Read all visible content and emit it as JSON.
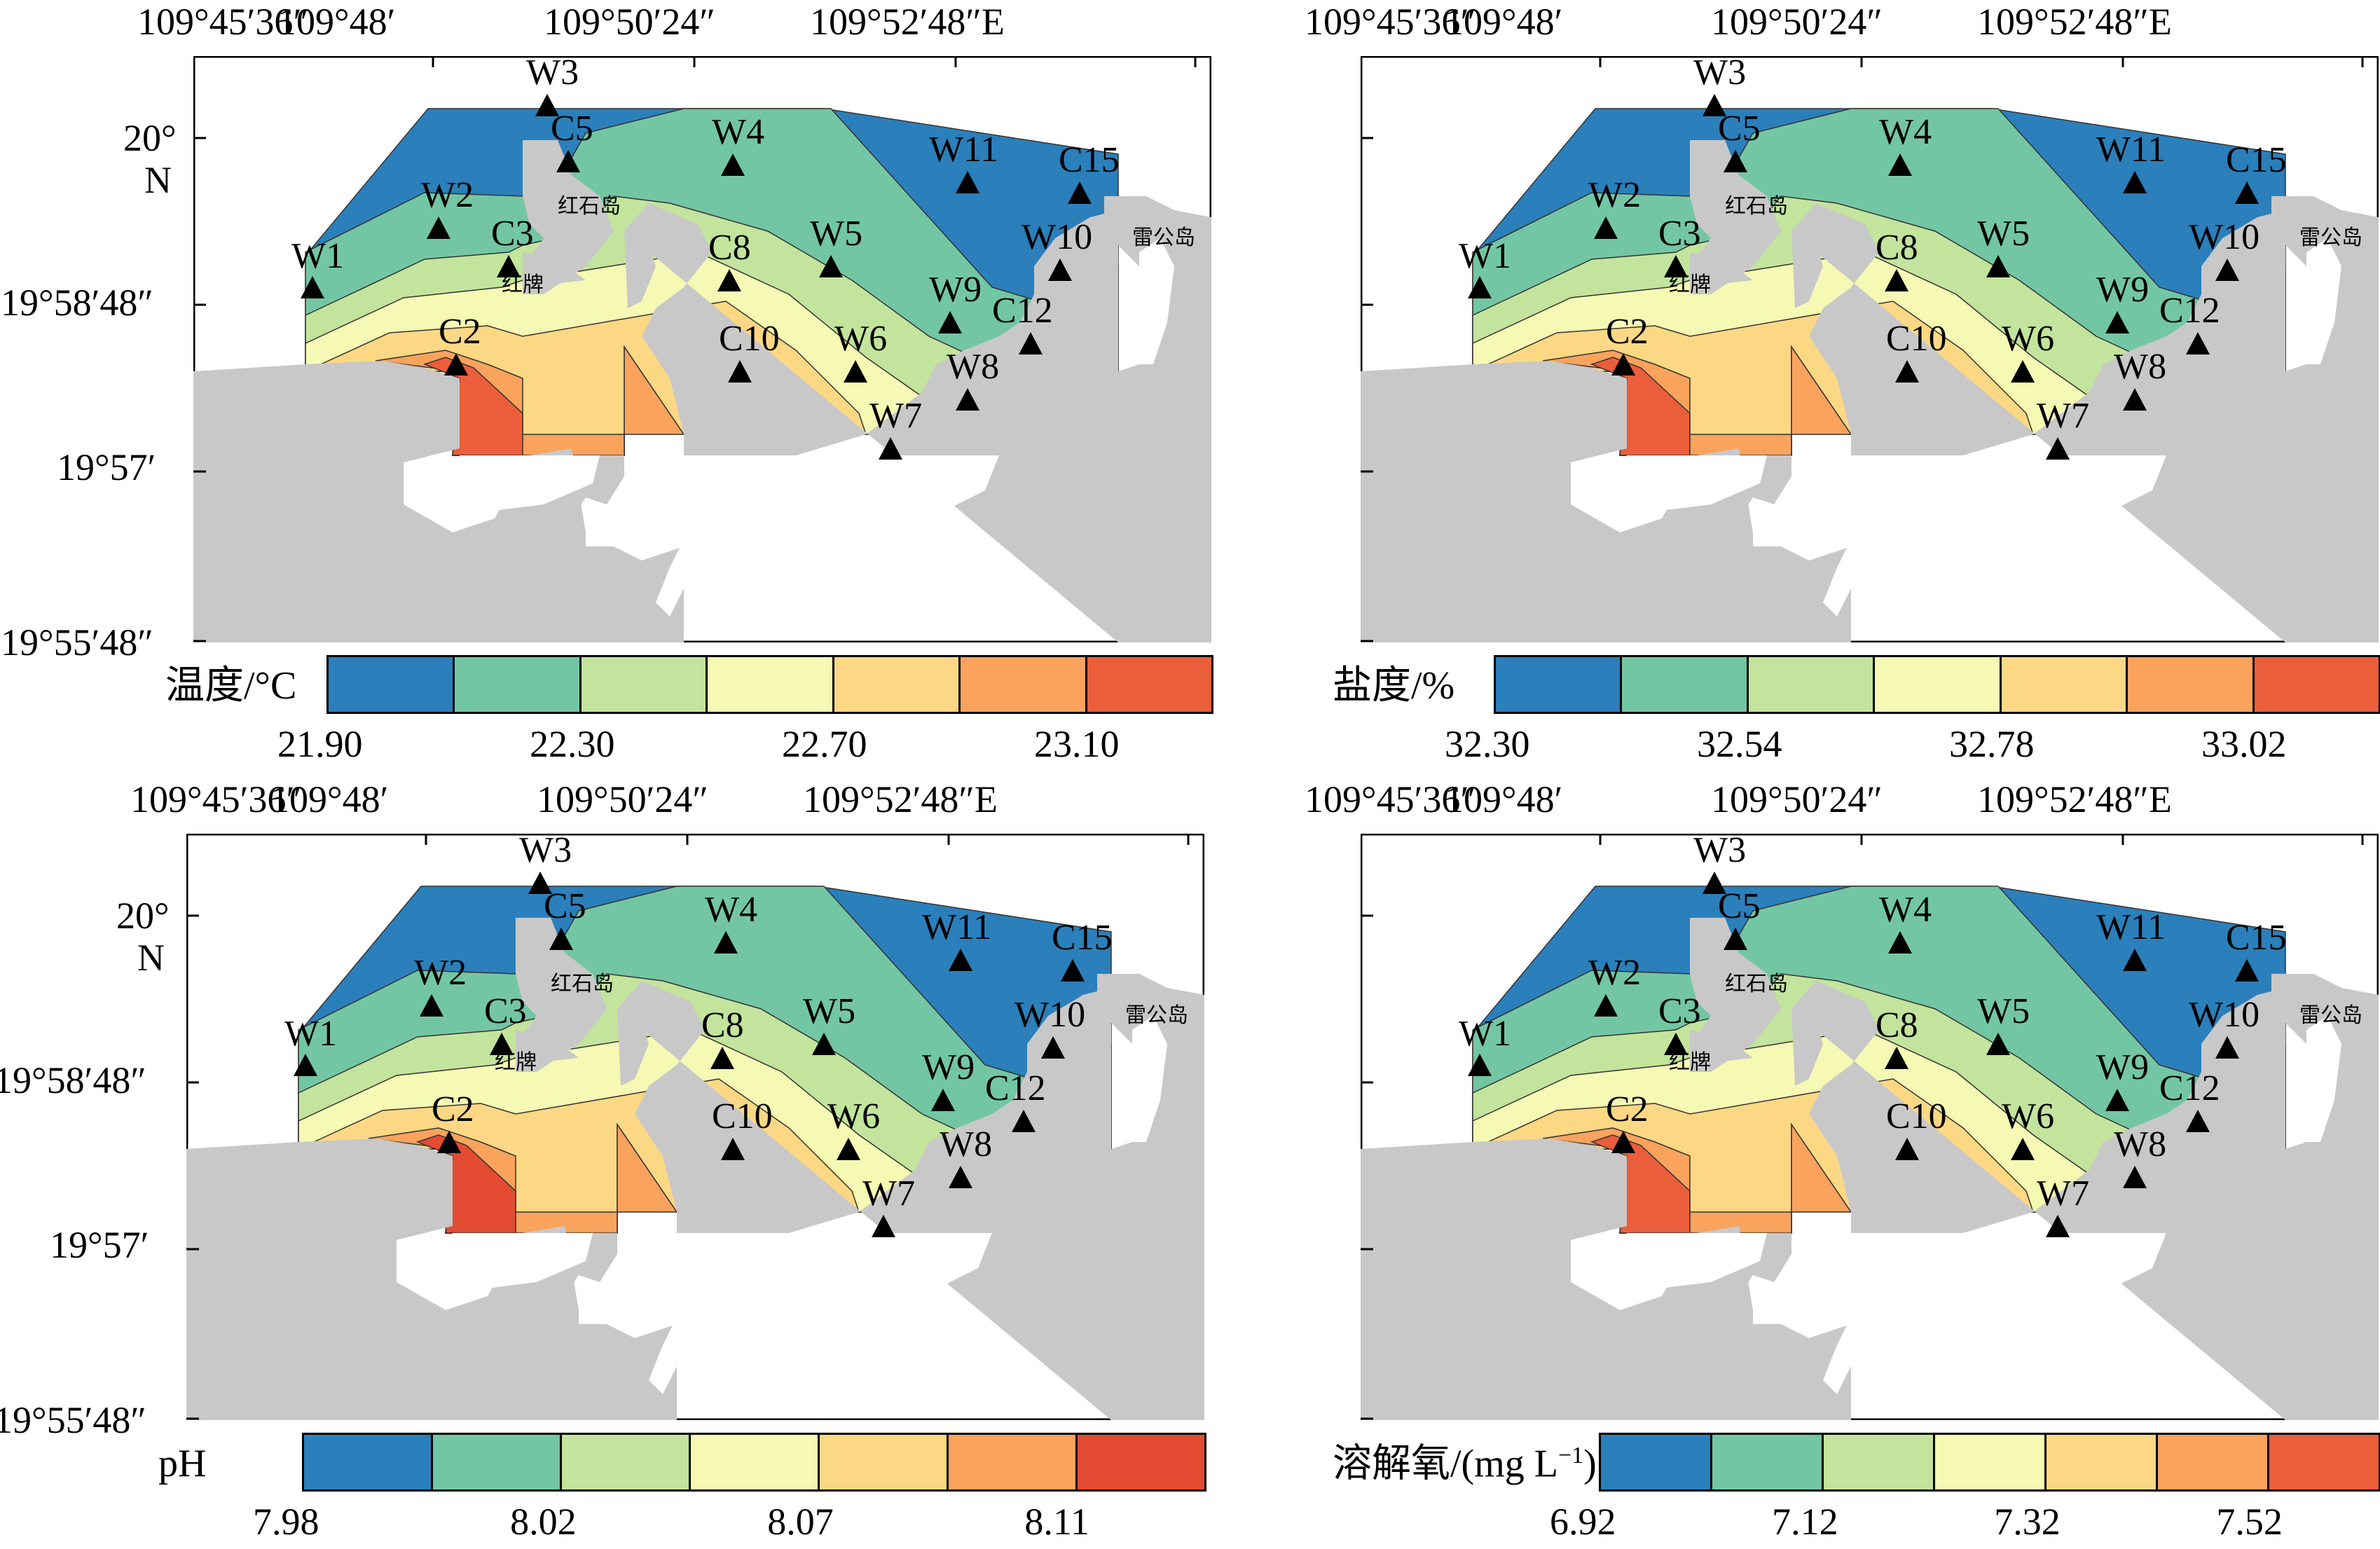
{
  "axes": {
    "lon_labels": [
      "109°45′36″",
      "109°48′",
      "109°50′24″",
      "109°52′48″E"
    ],
    "lat_labels": [
      "20°",
      "N",
      "19°58′48″",
      "19°57′",
      "19°55′48″"
    ]
  },
  "places": {
    "island1": "红石岛",
    "island2": "红牌",
    "island3": "雷公岛"
  },
  "panels": [
    {
      "title": "温度/°C",
      "ticks": [
        "21.90",
        "22.30",
        "22.70",
        "23.10"
      ],
      "colors": [
        "#2b7fba",
        "#73c6a4",
        "#c2e49c",
        "#f5f9b4",
        "#fcd885",
        "#f9a35d",
        "#eb5e3c"
      ]
    },
    {
      "title": "盐度/%",
      "ticks": [
        "32.30",
        "32.54",
        "32.78",
        "33.02"
      ],
      "colors": [
        "#2b7fba",
        "#73c6a4",
        "#c2e49c",
        "#f5f9b4",
        "#fcd885",
        "#f9a35d",
        "#eb5e3c"
      ]
    },
    {
      "title": "pH",
      "ticks": [
        "7.98",
        "8.02",
        "8.07",
        "8.11"
      ],
      "colors": [
        "#2b7fba",
        "#73c6a4",
        "#c2e49c",
        "#f5f9b4",
        "#fcd885",
        "#f9a35d",
        "#e34b33"
      ]
    },
    {
      "title": "溶解氧/(mg L",
      "title_sup": "−1",
      "title_end": ")",
      "ticks": [
        "6.92",
        "7.12",
        "7.32",
        "7.52"
      ],
      "colors": [
        "#2b7fba",
        "#73c6a4",
        "#c2e49c",
        "#f5f9b4",
        "#fcd885",
        "#f9a35d",
        "#eb5e3c"
      ]
    }
  ],
  "stations": [
    "W1",
    "W2",
    "W3",
    "W4",
    "W5",
    "W6",
    "W7",
    "W8",
    "W9",
    "W10",
    "W11",
    "C2",
    "C3",
    "C5",
    "C8",
    "C10",
    "C12",
    "C15"
  ],
  "colors": {
    "land": "#c8c8c8",
    "blank": "#ffffff",
    "frame": "#000000"
  }
}
